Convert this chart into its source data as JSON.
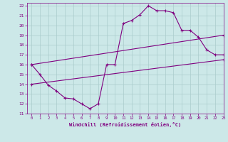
{
  "line1_x": [
    0,
    1,
    2,
    3,
    4,
    5,
    6,
    7,
    8,
    9,
    10,
    11,
    12,
    13,
    14,
    15,
    16,
    17,
    18,
    19,
    20,
    21,
    22,
    23
  ],
  "line1_y": [
    16.0,
    15.0,
    13.9,
    13.3,
    12.6,
    12.5,
    12.0,
    11.5,
    12.0,
    16.0,
    16.0,
    20.2,
    20.5,
    21.1,
    22.0,
    21.5,
    21.5,
    21.3,
    19.5,
    19.5,
    18.8,
    17.5,
    17.0,
    17.0
  ],
  "line2_x": [
    0,
    23
  ],
  "line2_y": [
    16.0,
    19.0
  ],
  "line3_x": [
    0,
    23
  ],
  "line3_y": [
    14.0,
    16.5
  ],
  "line_color": "#800080",
  "bg_color": "#cce8e8",
  "grid_color": "#aacccc",
  "xlabel": "Windchill (Refroidissement éolien,°C)",
  "xlim": [
    -0.5,
    23
  ],
  "ylim": [
    11,
    22.3
  ],
  "yticks": [
    11,
    12,
    13,
    14,
    15,
    16,
    17,
    18,
    19,
    20,
    21,
    22
  ],
  "xticks": [
    0,
    1,
    2,
    3,
    4,
    5,
    6,
    7,
    8,
    9,
    10,
    11,
    12,
    13,
    14,
    15,
    16,
    17,
    18,
    19,
    20,
    21,
    22,
    23
  ]
}
